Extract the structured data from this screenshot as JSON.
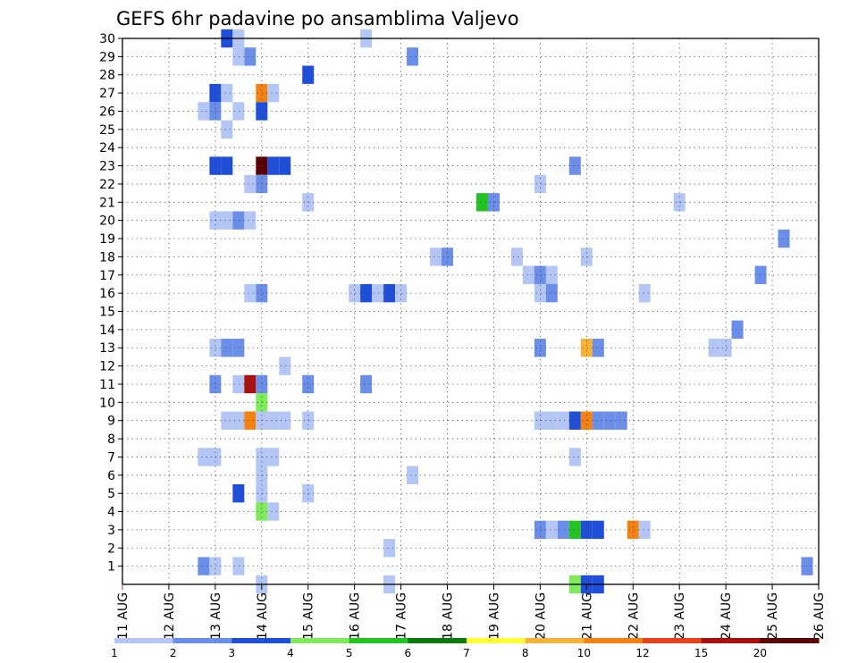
{
  "chart_data": {
    "type": "heatmap",
    "title": "GEFS 6hr padavine po ansamblima Valjevo",
    "xlabel": "",
    "ylabel": "",
    "x_tick_labels": [
      "11 AUG",
      "12 AUG",
      "13 AUG",
      "14 AUG",
      "15 AUG",
      "16 AUG",
      "17 AUG",
      "18 AUG",
      "19 AUG",
      "20 AUG",
      "21 AUG",
      "22 AUG",
      "23 AUG",
      "24 AUG",
      "25 AUG",
      "26 AUG"
    ],
    "y_tick_labels": [
      "1",
      "2",
      "3",
      "4",
      "5",
      "6",
      "7",
      "8",
      "9",
      "10",
      "11",
      "12",
      "13",
      "14",
      "15",
      "16",
      "17",
      "18",
      "19",
      "20",
      "21",
      "22",
      "23",
      "24",
      "25",
      "26",
      "27",
      "28",
      "29",
      "30"
    ],
    "x_range_days": [
      11,
      26
    ],
    "y_range": [
      0,
      30
    ],
    "grid": true,
    "colorbar": {
      "labels": [
        "1",
        "2",
        "3",
        "4",
        "5",
        "6",
        "7",
        "8",
        "10",
        "12",
        "15",
        "20"
      ],
      "colors": [
        "#b3c6f5",
        "#6b8ee8",
        "#1f4fd8",
        "#7fea5a",
        "#22c322",
        "#0a7a0a",
        "#ffff33",
        "#f7b238",
        "#f48212",
        "#e8431a",
        "#a81010",
        "#5a0000"
      ]
    },
    "cells": [
      {
        "member": 30,
        "day": 13.25,
        "bin": 3
      },
      {
        "member": 30,
        "day": 13.5,
        "bin": 1
      },
      {
        "member": 30,
        "day": 16.25,
        "bin": 1
      },
      {
        "member": 29,
        "day": 13.5,
        "bin": 1
      },
      {
        "member": 29,
        "day": 13.75,
        "bin": 2
      },
      {
        "member": 29,
        "day": 17.25,
        "bin": 2
      },
      {
        "member": 28,
        "day": 15.0,
        "bin": 3
      },
      {
        "member": 27,
        "day": 13.0,
        "bin": 3
      },
      {
        "member": 27,
        "day": 13.25,
        "bin": 1
      },
      {
        "member": 27,
        "day": 14.0,
        "bin": 9
      },
      {
        "member": 27,
        "day": 14.25,
        "bin": 1
      },
      {
        "member": 26,
        "day": 12.75,
        "bin": 1
      },
      {
        "member": 26,
        "day": 13.0,
        "bin": 2
      },
      {
        "member": 26,
        "day": 13.5,
        "bin": 1
      },
      {
        "member": 26,
        "day": 14.0,
        "bin": 3
      },
      {
        "member": 25,
        "day": 13.25,
        "bin": 1
      },
      {
        "member": 23,
        "day": 13.0,
        "bin": 3
      },
      {
        "member": 23,
        "day": 13.25,
        "bin": 3
      },
      {
        "member": 23,
        "day": 14.0,
        "bin": 12
      },
      {
        "member": 23,
        "day": 14.25,
        "bin": 3
      },
      {
        "member": 23,
        "day": 14.5,
        "bin": 3
      },
      {
        "member": 23,
        "day": 20.75,
        "bin": 2
      },
      {
        "member": 22,
        "day": 13.75,
        "bin": 1
      },
      {
        "member": 22,
        "day": 14.0,
        "bin": 2
      },
      {
        "member": 22,
        "day": 20.0,
        "bin": 1
      },
      {
        "member": 21,
        "day": 15.0,
        "bin": 1
      },
      {
        "member": 21,
        "day": 18.75,
        "bin": 5
      },
      {
        "member": 21,
        "day": 19.0,
        "bin": 2
      },
      {
        "member": 21,
        "day": 23.0,
        "bin": 1
      },
      {
        "member": 20,
        "day": 13.0,
        "bin": 1
      },
      {
        "member": 20,
        "day": 13.25,
        "bin": 1
      },
      {
        "member": 20,
        "day": 13.5,
        "bin": 2
      },
      {
        "member": 20,
        "day": 13.75,
        "bin": 1
      },
      {
        "member": 19,
        "day": 25.25,
        "bin": 2
      },
      {
        "member": 18,
        "day": 17.75,
        "bin": 1
      },
      {
        "member": 18,
        "day": 18.0,
        "bin": 2
      },
      {
        "member": 18,
        "day": 19.5,
        "bin": 1
      },
      {
        "member": 18,
        "day": 21.0,
        "bin": 1
      },
      {
        "member": 17,
        "day": 19.75,
        "bin": 1
      },
      {
        "member": 17,
        "day": 20.0,
        "bin": 2
      },
      {
        "member": 17,
        "day": 20.25,
        "bin": 1
      },
      {
        "member": 17,
        "day": 24.75,
        "bin": 2
      },
      {
        "member": 16,
        "day": 13.75,
        "bin": 1
      },
      {
        "member": 16,
        "day": 14.0,
        "bin": 2
      },
      {
        "member": 16,
        "day": 16.0,
        "bin": 1
      },
      {
        "member": 16,
        "day": 16.25,
        "bin": 3
      },
      {
        "member": 16,
        "day": 16.5,
        "bin": 1
      },
      {
        "member": 16,
        "day": 16.75,
        "bin": 3
      },
      {
        "member": 16,
        "day": 17.0,
        "bin": 1
      },
      {
        "member": 16,
        "day": 20.0,
        "bin": 1
      },
      {
        "member": 16,
        "day": 20.25,
        "bin": 2
      },
      {
        "member": 16,
        "day": 22.25,
        "bin": 1
      },
      {
        "member": 14,
        "day": 24.25,
        "bin": 2
      },
      {
        "member": 13,
        "day": 13.0,
        "bin": 1
      },
      {
        "member": 13,
        "day": 13.25,
        "bin": 2
      },
      {
        "member": 13,
        "day": 13.5,
        "bin": 2
      },
      {
        "member": 13,
        "day": 20.0,
        "bin": 2
      },
      {
        "member": 13,
        "day": 21.0,
        "bin": 8
      },
      {
        "member": 13,
        "day": 21.25,
        "bin": 2
      },
      {
        "member": 13,
        "day": 23.75,
        "bin": 1
      },
      {
        "member": 13,
        "day": 24.0,
        "bin": 1
      },
      {
        "member": 12,
        "day": 14.5,
        "bin": 1
      },
      {
        "member": 11,
        "day": 13.0,
        "bin": 2
      },
      {
        "member": 11,
        "day": 13.5,
        "bin": 1
      },
      {
        "member": 11,
        "day": 13.75,
        "bin": 11
      },
      {
        "member": 11,
        "day": 14.0,
        "bin": 2
      },
      {
        "member": 11,
        "day": 15.0,
        "bin": 2
      },
      {
        "member": 11,
        "day": 16.25,
        "bin": 2
      },
      {
        "member": 10,
        "day": 14.0,
        "bin": 4
      },
      {
        "member": 9,
        "day": 13.25,
        "bin": 1
      },
      {
        "member": 9,
        "day": 13.5,
        "bin": 1
      },
      {
        "member": 9,
        "day": 13.75,
        "bin": 9
      },
      {
        "member": 9,
        "day": 14.0,
        "bin": 1
      },
      {
        "member": 9,
        "day": 14.25,
        "bin": 1
      },
      {
        "member": 9,
        "day": 14.5,
        "bin": 1
      },
      {
        "member": 9,
        "day": 15.0,
        "bin": 1
      },
      {
        "member": 9,
        "day": 20.0,
        "bin": 1
      },
      {
        "member": 9,
        "day": 20.25,
        "bin": 1
      },
      {
        "member": 9,
        "day": 20.5,
        "bin": 1
      },
      {
        "member": 9,
        "day": 20.75,
        "bin": 3
      },
      {
        "member": 9,
        "day": 21.0,
        "bin": 9
      },
      {
        "member": 9,
        "day": 21.25,
        "bin": 2
      },
      {
        "member": 9,
        "day": 21.5,
        "bin": 2
      },
      {
        "member": 9,
        "day": 21.75,
        "bin": 2
      },
      {
        "member": 7,
        "day": 12.75,
        "bin": 1
      },
      {
        "member": 7,
        "day": 13.0,
        "bin": 1
      },
      {
        "member": 7,
        "day": 14.0,
        "bin": 1
      },
      {
        "member": 7,
        "day": 14.25,
        "bin": 1
      },
      {
        "member": 7,
        "day": 20.75,
        "bin": 1
      },
      {
        "member": 6,
        "day": 14.0,
        "bin": 1
      },
      {
        "member": 6,
        "day": 17.25,
        "bin": 1
      },
      {
        "member": 5,
        "day": 13.5,
        "bin": 3
      },
      {
        "member": 5,
        "day": 14.0,
        "bin": 1
      },
      {
        "member": 5,
        "day": 15.0,
        "bin": 1
      },
      {
        "member": 4,
        "day": 14.0,
        "bin": 4
      },
      {
        "member": 4,
        "day": 14.25,
        "bin": 1
      },
      {
        "member": 3,
        "day": 20.0,
        "bin": 2
      },
      {
        "member": 3,
        "day": 20.25,
        "bin": 1
      },
      {
        "member": 3,
        "day": 20.5,
        "bin": 2
      },
      {
        "member": 3,
        "day": 20.75,
        "bin": 5
      },
      {
        "member": 3,
        "day": 21.0,
        "bin": 3
      },
      {
        "member": 3,
        "day": 21.25,
        "bin": 3
      },
      {
        "member": 3,
        "day": 22.0,
        "bin": 9
      },
      {
        "member": 3,
        "day": 22.25,
        "bin": 1
      },
      {
        "member": 2,
        "day": 16.75,
        "bin": 1
      },
      {
        "member": 1,
        "day": 12.75,
        "bin": 2
      },
      {
        "member": 1,
        "day": 13.0,
        "bin": 1
      },
      {
        "member": 1,
        "day": 13.5,
        "bin": 1
      },
      {
        "member": 1,
        "day": 25.75,
        "bin": 2
      },
      {
        "member": 0,
        "day": 14.0,
        "bin": 1
      },
      {
        "member": 0,
        "day": 16.75,
        "bin": 1
      },
      {
        "member": 0,
        "day": 20.75,
        "bin": 4
      },
      {
        "member": 0,
        "day": 21.0,
        "bin": 3
      },
      {
        "member": 0,
        "day": 21.25,
        "bin": 3
      }
    ]
  }
}
